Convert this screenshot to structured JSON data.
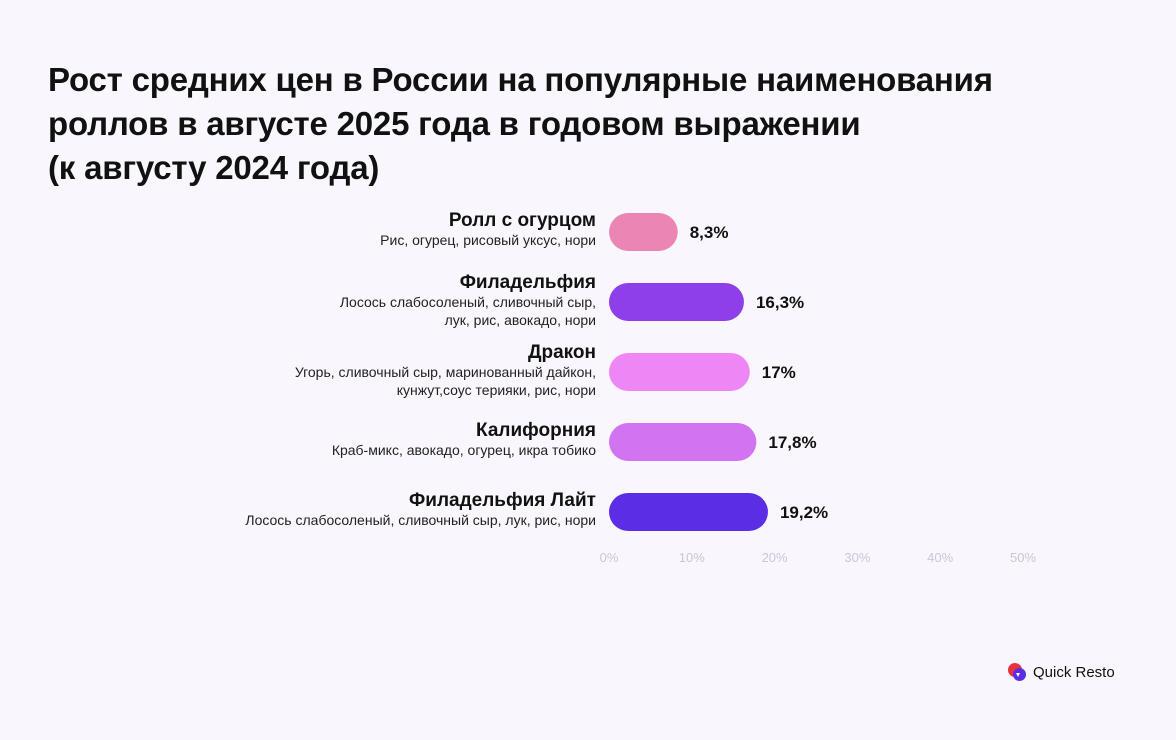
{
  "title_lines": [
    "Рост средних цен в России на популярные наименования",
    "роллов в августе 2025 года в годовом выражении",
    "(к августу 2024 года)"
  ],
  "brand": {
    "name": "Quick Resto",
    "colors": [
      "#e8323e",
      "#5b2ee6"
    ]
  },
  "chart_data": {
    "type": "bar",
    "orientation": "horizontal",
    "categories": [
      "Ролл с огурцом",
      "Филадельфия",
      "Дракон",
      "Калифорния",
      "Филадельфия Лайт"
    ],
    "descriptions": [
      [
        "Рис, огурец, рисовый уксус, нори"
      ],
      [
        "Лосось слабосоленый, сливочный сыр,",
        "лук, рис, авокадо, нори"
      ],
      [
        "Угорь, сливочный сыр, маринованный дайкон,",
        "кунжут,соус терияки, рис, нори"
      ],
      [
        "Краб-микс, авокадо, огурец, икра тобико"
      ],
      [
        "Лосось слабосоленый, сливочный сыр, лук, рис, нори"
      ]
    ],
    "values": [
      8.3,
      16.3,
      17,
      17.8,
      19.2
    ],
    "value_labels": [
      "8,3%",
      "16,3%",
      "17%",
      "17,8%",
      "19,2%"
    ],
    "colors": [
      "#eb86b4",
      "#8f3fea",
      "#ee87f5",
      "#d274f2",
      "#5b2ee6"
    ],
    "x_ticks": [
      "0%",
      "10%",
      "20%",
      "30%",
      "40%",
      "50%"
    ],
    "xlim": [
      0,
      50
    ],
    "grid": false
  }
}
